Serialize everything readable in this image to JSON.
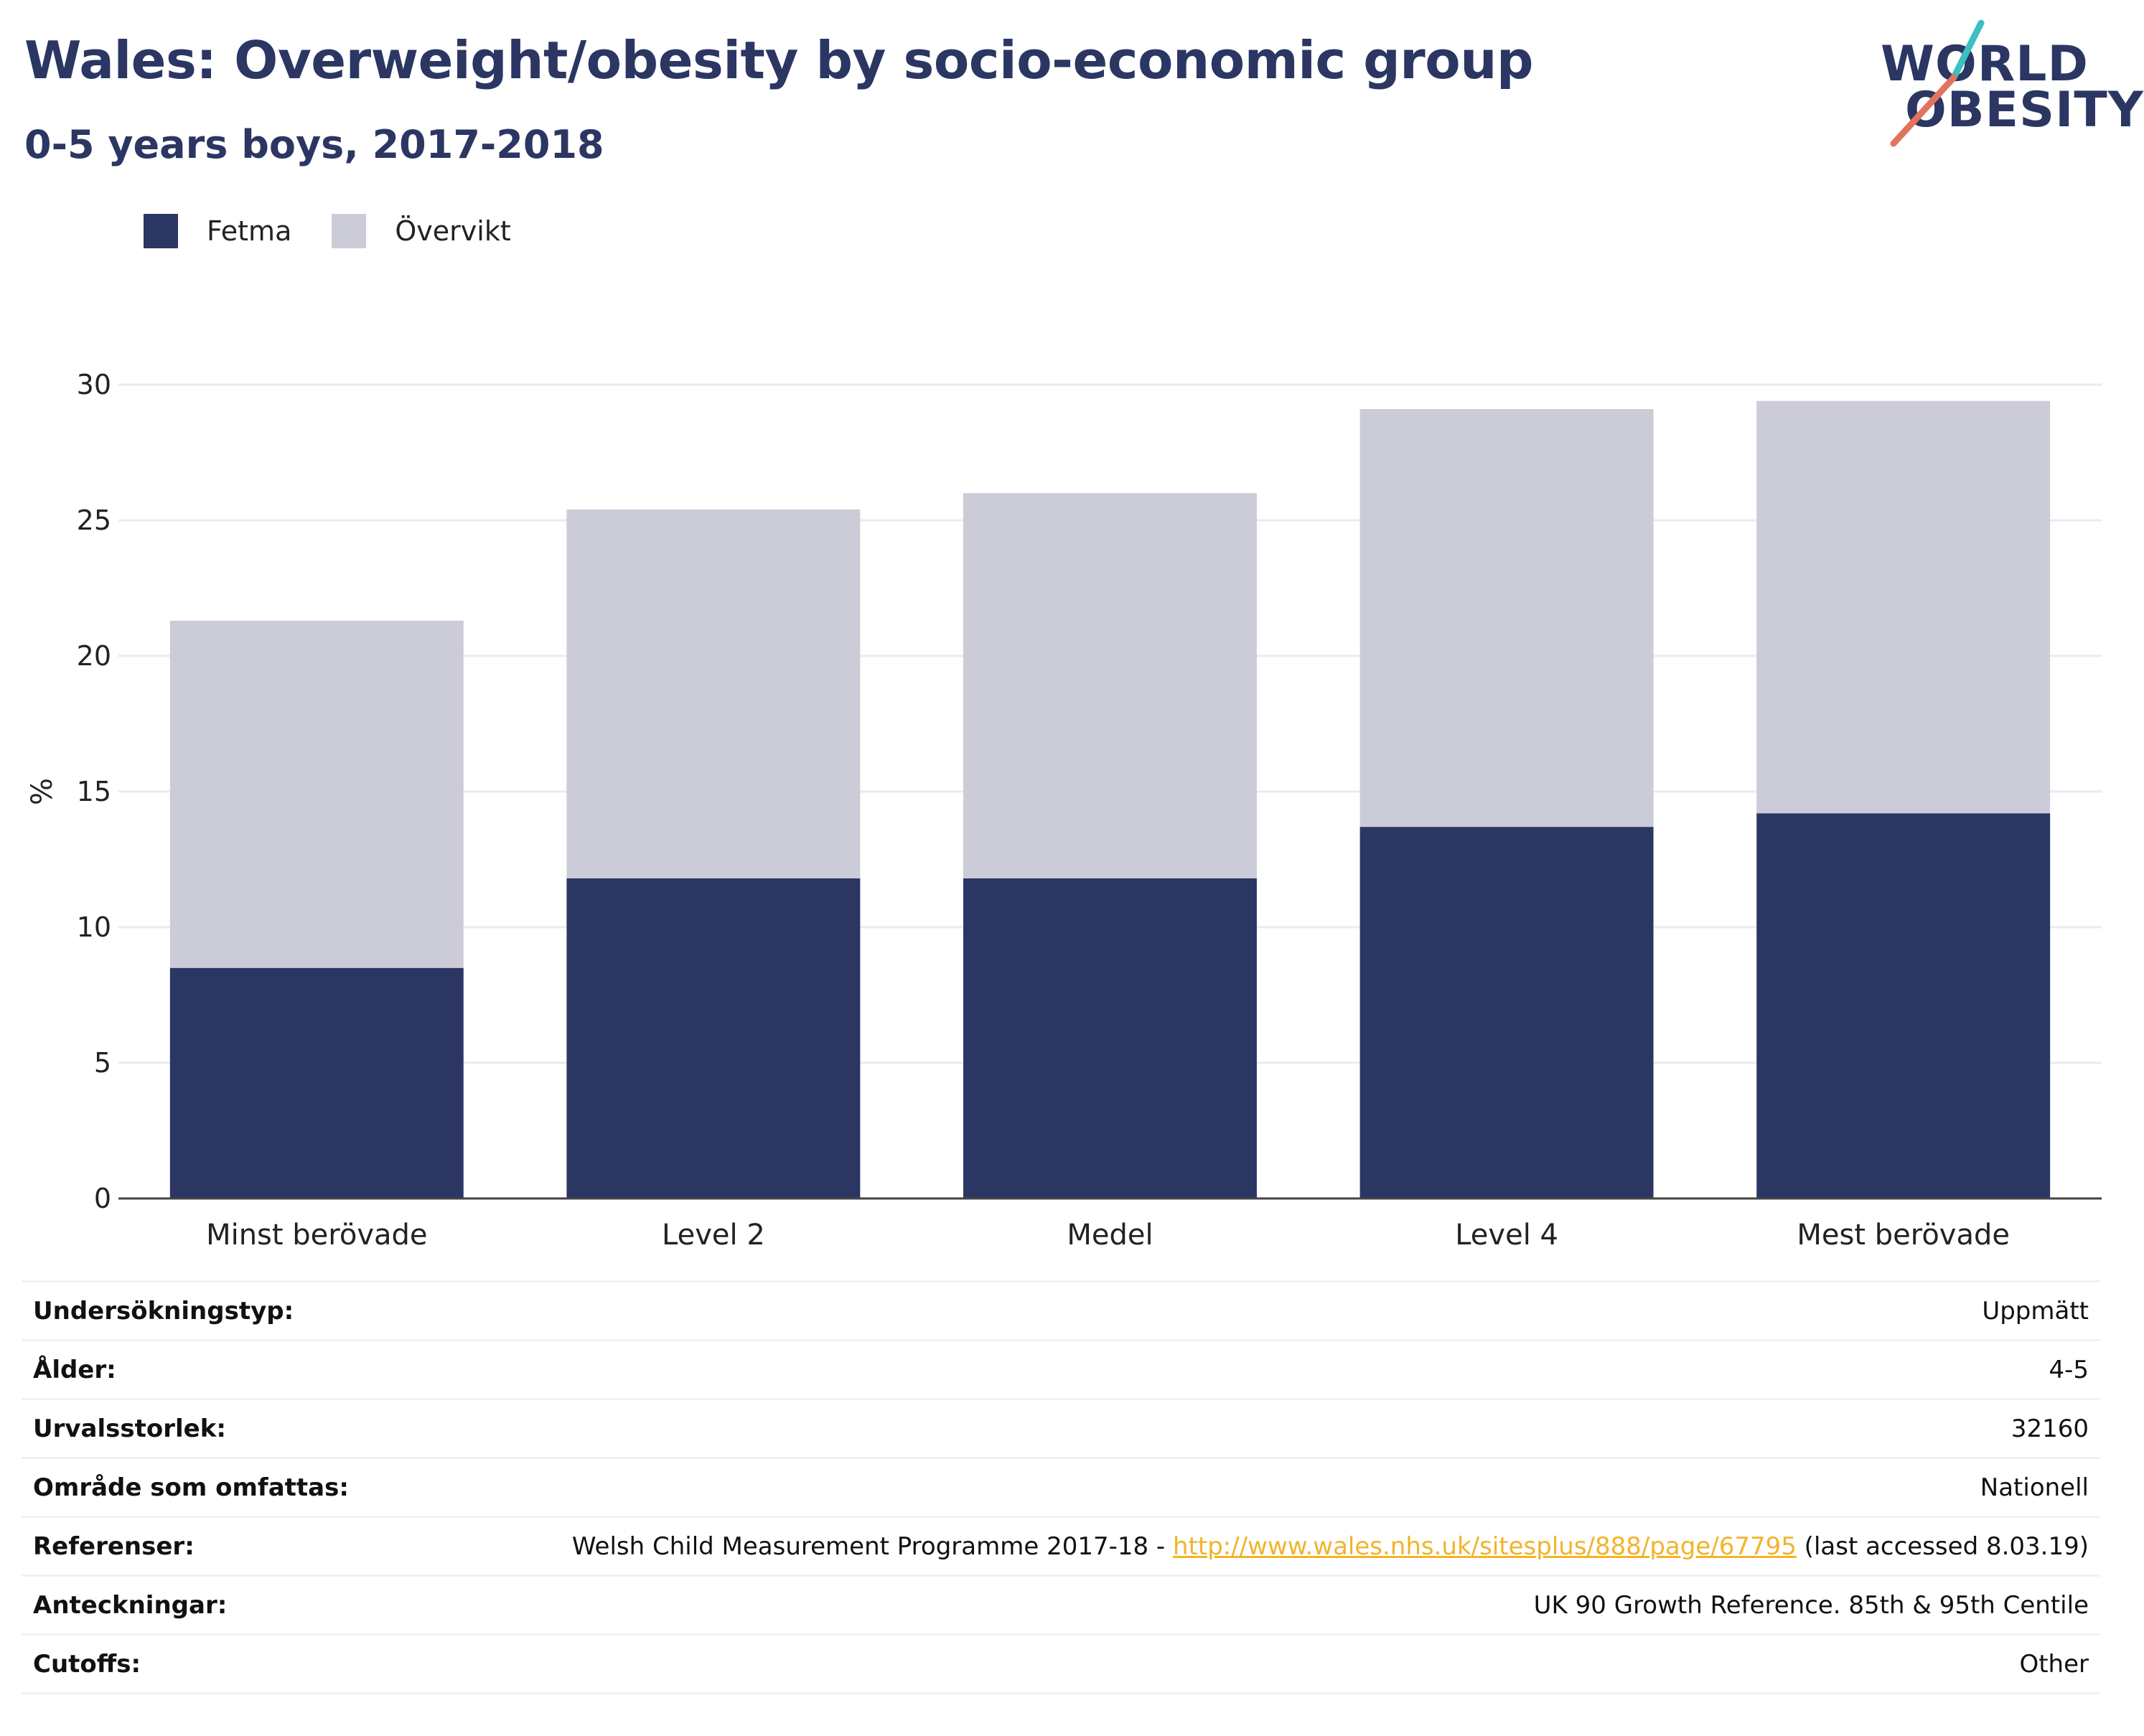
{
  "title": "Wales: Overweight/obesity by socio-economic group",
  "subtitle": "0-5 years boys, 2017-2018",
  "logo": {
    "line1": "WORLD",
    "line2": "OBESITY"
  },
  "colors": {
    "fetma": "#2b3663",
    "overvikt": "#cbccd7",
    "title": "#2b3663",
    "link": "#f1b42a",
    "logo_slash_top": "#3bbfc1",
    "logo_slash_bottom": "#e2735f"
  },
  "legend": [
    {
      "label": "Fetma",
      "color": "#2b3663"
    },
    {
      "label": "Övervikt",
      "color": "#cbccd7"
    }
  ],
  "chart_data": {
    "type": "bar",
    "stacked": true,
    "categories": [
      "Minst berövade",
      "Level 2",
      "Medel",
      "Level 4",
      "Mest berövade"
    ],
    "series": [
      {
        "name": "Fetma",
        "values": [
          8.5,
          11.8,
          11.8,
          13.7,
          14.2
        ]
      },
      {
        "name": "Övervikt",
        "values": [
          12.8,
          13.6,
          14.2,
          15.4,
          15.2
        ]
      }
    ],
    "ylabel": "%",
    "xlabel": "",
    "ylim": [
      0,
      30
    ],
    "yticks": [
      0,
      5,
      10,
      15,
      20,
      25,
      30
    ],
    "grid": true,
    "legend_position": "top-left"
  },
  "meta": [
    {
      "key": "Undersökningstyp:",
      "value": "Uppmätt"
    },
    {
      "key": "Ålder:",
      "value": "4-5"
    },
    {
      "key": "Urvalsstorlek:",
      "value": "32160"
    },
    {
      "key": "Område som omfattas:",
      "value": "Nationell"
    },
    {
      "key": "Referenser:",
      "value_prefix": "Welsh Child Measurement Programme 2017-18 - ",
      "link": "http://www.wales.nhs.uk/sitesplus/888/page/67795",
      "value_suffix": " (last accessed 8.03.19)"
    },
    {
      "key": "Anteckningar:",
      "value": "UK 90 Growth Reference. 85th & 95th Centile"
    },
    {
      "key": "Cutoffs:",
      "value": "Other"
    }
  ]
}
